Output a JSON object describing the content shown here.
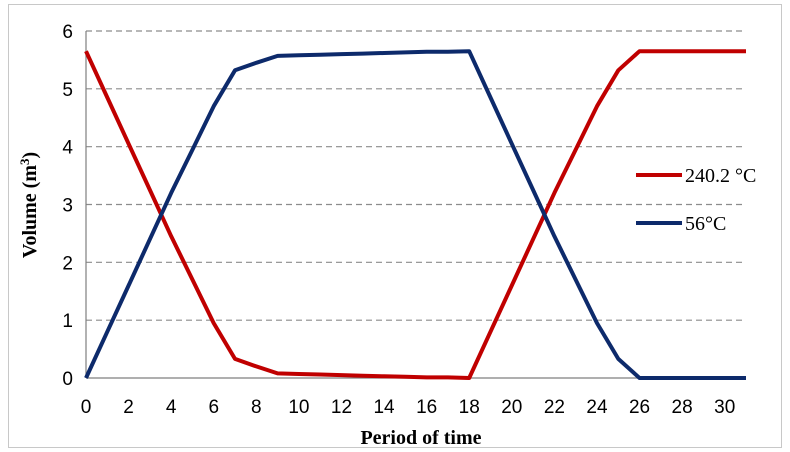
{
  "chart_data": {
    "type": "line",
    "xlabel": "Period of time",
    "ylabel": "Volume (m",
    "ylabel_sup": "3",
    "ylabel_close": ")",
    "xlim": [
      0,
      31
    ],
    "ylim": [
      0,
      6
    ],
    "xticks": [
      0,
      2,
      4,
      6,
      8,
      10,
      12,
      14,
      16,
      18,
      20,
      22,
      24,
      26,
      28,
      30
    ],
    "yticks": [
      0,
      1,
      2,
      3,
      4,
      5,
      6
    ],
    "grid": "horizontal dashed",
    "legend_position": "right",
    "series": [
      {
        "name": "240.2 °C",
        "color": "#c00000",
        "x": [
          0,
          1,
          2,
          3,
          4,
          5,
          6,
          7,
          8,
          9,
          10,
          11,
          12,
          13,
          14,
          15,
          16,
          17,
          18,
          19,
          20,
          21,
          22,
          23,
          24,
          25,
          26,
          27,
          28,
          29,
          30,
          31
        ],
        "y": [
          5.65,
          4.85,
          4.05,
          3.25,
          2.45,
          1.7,
          0.95,
          0.33,
          0.2,
          0.08,
          0.07,
          0.06,
          0.05,
          0.04,
          0.03,
          0.02,
          0.01,
          0.01,
          0.0,
          0.8,
          1.6,
          2.4,
          3.2,
          3.95,
          4.7,
          5.32,
          5.65,
          5.65,
          5.65,
          5.65,
          5.65,
          5.65
        ]
      },
      {
        "name": "56°C",
        "color": "#0d2a6b",
        "x": [
          0,
          1,
          2,
          3,
          4,
          5,
          6,
          7,
          8,
          9,
          10,
          11,
          12,
          13,
          14,
          15,
          16,
          17,
          18,
          19,
          20,
          21,
          22,
          23,
          24,
          25,
          26,
          27,
          28,
          29,
          30,
          31
        ],
        "y": [
          0.0,
          0.8,
          1.6,
          2.4,
          3.2,
          3.95,
          4.7,
          5.32,
          5.45,
          5.57,
          5.58,
          5.59,
          5.6,
          5.61,
          5.62,
          5.63,
          5.64,
          5.64,
          5.65,
          4.85,
          4.05,
          3.25,
          2.45,
          1.7,
          0.95,
          0.33,
          0.0,
          0.0,
          0.0,
          0.0,
          0.0,
          0.0
        ]
      }
    ]
  }
}
